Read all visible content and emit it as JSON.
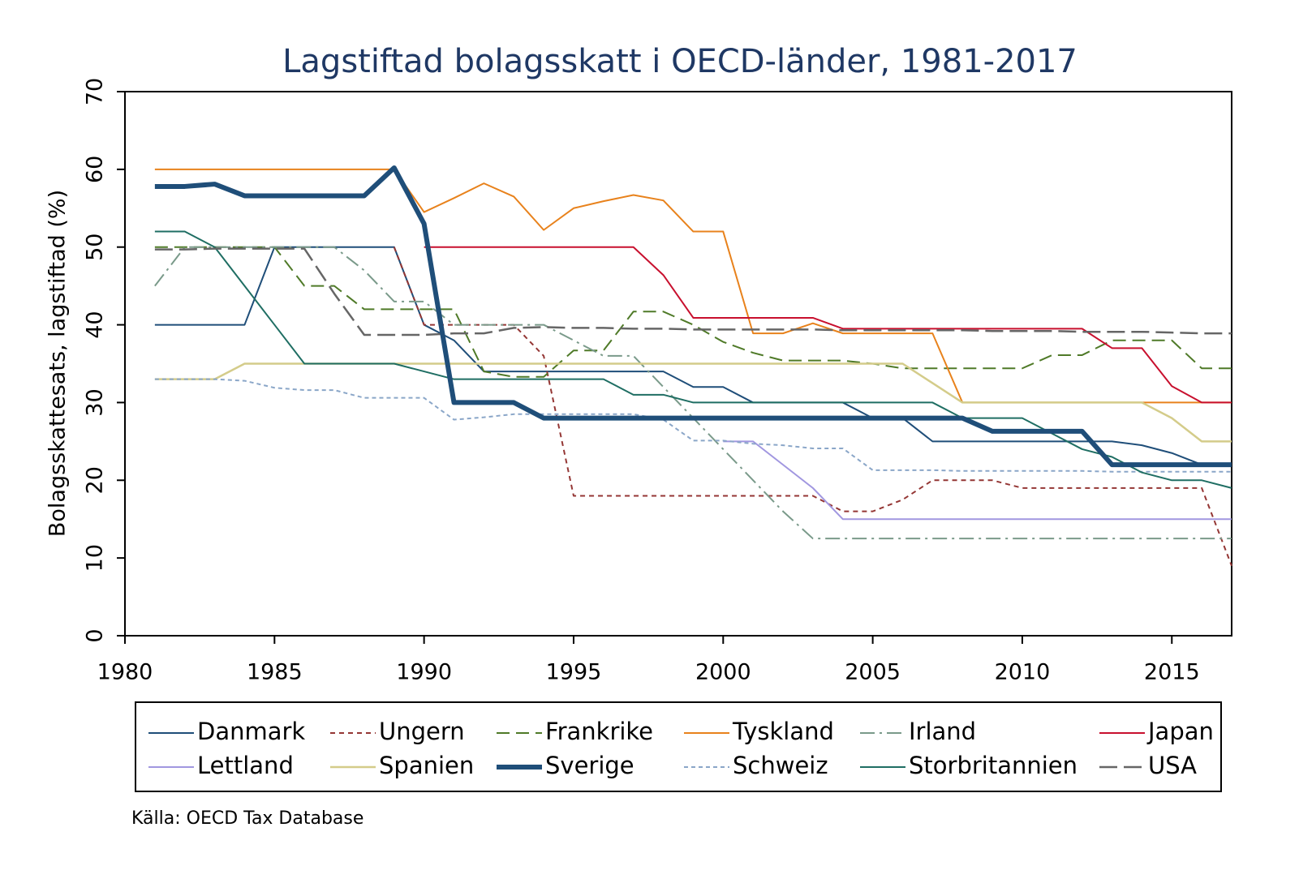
{
  "chart_data": {
    "type": "line",
    "title": "Lagstiftad bolagsskatt i OECD-länder, 1981-2017",
    "y_label": "Bolagsskattesats, lagstiftad (%)",
    "source": "Källa: OECD Tax Database",
    "xlim": [
      1980,
      2017
    ],
    "xticks": [
      1980,
      1985,
      1990,
      1995,
      2000,
      2005,
      2010,
      2015
    ],
    "ylim": [
      0,
      70
    ],
    "yticks": [
      0,
      10,
      20,
      30,
      40,
      50,
      60,
      70
    ],
    "x": [
      1981,
      1982,
      1983,
      1984,
      1985,
      1986,
      1987,
      1988,
      1989,
      1990,
      1991,
      1992,
      1993,
      1994,
      1995,
      1996,
      1997,
      1998,
      1999,
      2000,
      2001,
      2002,
      2003,
      2004,
      2005,
      2006,
      2007,
      2008,
      2009,
      2010,
      2011,
      2012,
      2013,
      2014,
      2015,
      2016,
      2017
    ],
    "series": [
      {
        "name": "Danmark",
        "color": "#1f4e79",
        "width": 2,
        "dash": "",
        "values": [
          40,
          40,
          40,
          40,
          50,
          50,
          50,
          50,
          50,
          40,
          38,
          34,
          34,
          34,
          34,
          34,
          34,
          34,
          32,
          32,
          30,
          30,
          30,
          30,
          28,
          28,
          25,
          25,
          25,
          25,
          25,
          25,
          25,
          24.5,
          23.5,
          22,
          22
        ]
      },
      {
        "name": "Ungern",
        "color": "#943634",
        "width": 2,
        "dash": "6 5",
        "values": [
          null,
          null,
          null,
          null,
          null,
          null,
          null,
          null,
          50,
          40,
          40,
          40,
          40,
          36,
          18,
          18,
          18,
          18,
          18,
          18,
          18,
          18,
          18,
          16,
          16,
          17.5,
          20,
          20,
          20,
          19,
          19,
          19,
          19,
          19,
          19,
          19,
          9
        ]
      },
      {
        "name": "Frankrike",
        "color": "#4f7a28",
        "width": 2,
        "dash": "16 8",
        "values": [
          50,
          50,
          50,
          50,
          50,
          45,
          45,
          42,
          42,
          42,
          42,
          34,
          33.3,
          33.3,
          36.7,
          36.7,
          41.7,
          41.7,
          40,
          37.8,
          36.4,
          35.4,
          35.4,
          35.4,
          35,
          34.4,
          34.4,
          34.4,
          34.4,
          34.4,
          36.1,
          36.1,
          38,
          38,
          38,
          34.4,
          34.4
        ]
      },
      {
        "name": "Tyskland",
        "color": "#e8821c",
        "width": 2,
        "dash": "",
        "values": [
          60,
          60,
          60,
          60,
          60,
          60,
          60,
          60,
          60,
          54.5,
          56.3,
          58.2,
          56.5,
          52.2,
          55,
          55.9,
          56.7,
          56,
          52,
          52,
          38.9,
          38.9,
          40.2,
          38.9,
          38.9,
          38.9,
          38.9,
          30,
          30,
          30,
          30,
          30,
          30,
          30,
          30,
          30,
          30
        ]
      },
      {
        "name": "Irland",
        "color": "#7a9a8a",
        "width": 2,
        "dash": "18 6 3 6",
        "values": [
          45,
          50,
          50,
          50,
          50,
          50,
          50,
          47,
          43,
          43,
          40,
          40,
          40,
          40,
          38,
          36,
          36,
          32,
          28,
          24,
          20,
          16,
          12.5,
          12.5,
          12.5,
          12.5,
          12.5,
          12.5,
          12.5,
          12.5,
          12.5,
          12.5,
          12.5,
          12.5,
          12.5,
          12.5,
          12.5
        ]
      },
      {
        "name": "Japan",
        "color": "#c8102e",
        "width": 2,
        "dash": "",
        "values": [
          null,
          null,
          null,
          null,
          null,
          null,
          null,
          null,
          null,
          50,
          50,
          50,
          50,
          50,
          50,
          50,
          50,
          46.4,
          40.9,
          40.9,
          40.9,
          40.9,
          40.9,
          39.5,
          39.5,
          39.5,
          39.5,
          39.5,
          39.5,
          39.5,
          39.5,
          39.5,
          37,
          37,
          32.1,
          30,
          30
        ]
      },
      {
        "name": "Lettland",
        "color": "#a197e0",
        "width": 2,
        "dash": "",
        "values": [
          null,
          null,
          null,
          null,
          null,
          null,
          null,
          null,
          null,
          null,
          null,
          null,
          null,
          null,
          null,
          null,
          null,
          null,
          null,
          25,
          25,
          22,
          19,
          15,
          15,
          15,
          15,
          15,
          15,
          15,
          15,
          15,
          15,
          15,
          15,
          15,
          15
        ]
      },
      {
        "name": "Spanien",
        "color": "#d4cc8a",
        "width": 2.5,
        "dash": "",
        "values": [
          33,
          33,
          33,
          35,
          35,
          35,
          35,
          35,
          35,
          35,
          35,
          35,
          35,
          35,
          35,
          35,
          35,
          35,
          35,
          35,
          35,
          35,
          35,
          35,
          35,
          35,
          32.5,
          30,
          30,
          30,
          30,
          30,
          30,
          30,
          28,
          25,
          25
        ]
      },
      {
        "name": "Sverige",
        "color": "#1f4e79",
        "width": 6,
        "dash": "",
        "values": [
          57.8,
          57.8,
          58.1,
          56.6,
          56.6,
          56.6,
          56.6,
          56.6,
          60.2,
          53,
          30,
          30,
          30,
          28,
          28,
          28,
          28,
          28,
          28,
          28,
          28,
          28,
          28,
          28,
          28,
          28,
          28,
          28,
          26.3,
          26.3,
          26.3,
          26.3,
          22,
          22,
          22,
          22,
          22
        ]
      },
      {
        "name": "Schweiz",
        "color": "#8aa6c8",
        "width": 2,
        "dash": "5 4",
        "values": [
          33,
          33,
          33,
          32.8,
          31.9,
          31.6,
          31.6,
          30.6,
          30.6,
          30.6,
          27.8,
          28.1,
          28.5,
          28.5,
          28.5,
          28.5,
          28.5,
          27.8,
          25.1,
          25.1,
          24.7,
          24.5,
          24.1,
          24.1,
          21.3,
          21.3,
          21.3,
          21.2,
          21.2,
          21.2,
          21.2,
          21.2,
          21.1,
          21.1,
          21.1,
          21.1,
          21.1
        ]
      },
      {
        "name": "Storbritannien",
        "color": "#1f6e63",
        "width": 2,
        "dash": "",
        "values": [
          52,
          52,
          50,
          45,
          40,
          35,
          35,
          35,
          35,
          34,
          33,
          33,
          33,
          33,
          33,
          33,
          31,
          31,
          30,
          30,
          30,
          30,
          30,
          30,
          30,
          30,
          30,
          28,
          28,
          28,
          26,
          24,
          23,
          21,
          20,
          20,
          19
        ]
      },
      {
        "name": "USA",
        "color": "#666666",
        "width": 2.5,
        "dash": "22 8",
        "values": [
          49.7,
          49.7,
          49.8,
          49.8,
          49.8,
          49.8,
          44,
          38.7,
          38.7,
          38.7,
          38.9,
          38.9,
          39.6,
          39.7,
          39.6,
          39.6,
          39.5,
          39.5,
          39.4,
          39.4,
          39.4,
          39.4,
          39.4,
          39.3,
          39.3,
          39.3,
          39.3,
          39.3,
          39.2,
          39.2,
          39.2,
          39.1,
          39.1,
          39.1,
          39,
          38.9,
          38.9
        ]
      }
    ]
  }
}
